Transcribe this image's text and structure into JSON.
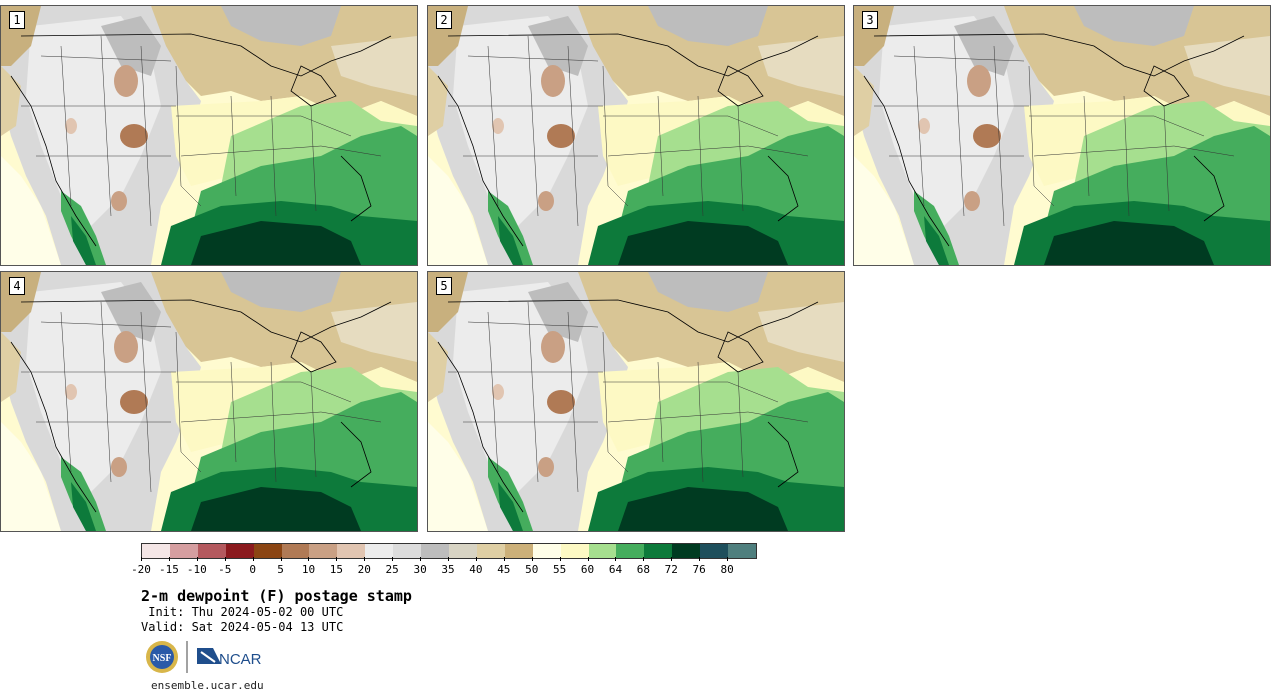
{
  "panels": [
    {
      "number": "1"
    },
    {
      "number": "2"
    },
    {
      "number": "3"
    },
    {
      "number": "4"
    },
    {
      "number": "5"
    }
  ],
  "colorbar": {
    "colors": [
      "#f4e6e6",
      "#d59ea0",
      "#b4595e",
      "#8b1a1e",
      "#8b4513",
      "#b07a55",
      "#c9a084",
      "#e1c5b1",
      "#ececec",
      "#dcdcdc",
      "#bdbdbd",
      "#d8d4c4",
      "#dfcfa4",
      "#ccb079",
      "#fffee8",
      "#fdf9c4",
      "#a6df8f",
      "#45ad5d",
      "#0d7a3b",
      "#003b21",
      "#1e4f5c",
      "#4f7f7e"
    ],
    "tick_labels": [
      "-20",
      "-15",
      "-10",
      "-5",
      "0",
      "5",
      "10",
      "15",
      "20",
      "25",
      "30",
      "35",
      "40",
      "45",
      "50",
      "55",
      "60",
      "64",
      "68",
      "72",
      "76",
      "80"
    ]
  },
  "title": "2-m dewpoint (F) postage stamp",
  "init": " Init: Thu 2024-05-02 00 UTC",
  "valid": "Valid: Sat 2024-05-04 13 UTC",
  "logos": {
    "nsf": "NSF",
    "ncar": "NCAR"
  },
  "website": "ensemble.ucar.edu"
}
